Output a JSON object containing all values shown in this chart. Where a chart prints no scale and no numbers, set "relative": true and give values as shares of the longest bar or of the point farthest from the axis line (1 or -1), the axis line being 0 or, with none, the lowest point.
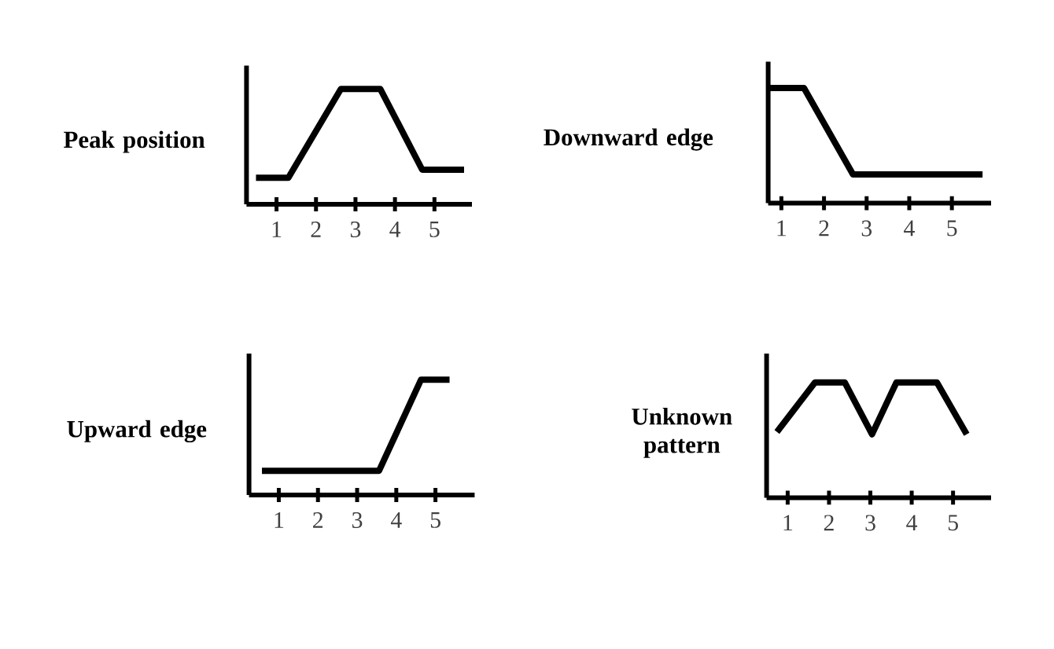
{
  "chart_data": [
    {
      "type": "line",
      "relative": true,
      "ylabel": "Peak position",
      "color": "#000000",
      "xlim": [
        0.24,
        5.95
      ],
      "xticks": [
        1,
        2,
        3,
        4,
        5
      ],
      "x": [
        0.48,
        1.3,
        2.63,
        3.63,
        4.69,
        5.75
      ],
      "values": [
        0.23,
        0.23,
        1,
        1,
        0.3,
        0.3
      ]
    },
    {
      "type": "line",
      "relative": true,
      "ylabel": "Downward edge",
      "color": "#000000",
      "xlim": [
        0.69,
        5.92
      ],
      "xticks": [
        1,
        2,
        3,
        4,
        5
      ],
      "x": [
        0.69,
        1.53,
        2.68,
        5.72
      ],
      "values": [
        1,
        1,
        0.25,
        0.25
      ]
    },
    {
      "type": "line",
      "relative": true,
      "ylabel": "Upward edge",
      "color": "#000000",
      "xlim": [
        0.24,
        6.0
      ],
      "xticks": [
        1,
        2,
        3,
        4,
        5
      ],
      "x": [
        0.57,
        3.56,
        4.63,
        5.36
      ],
      "values": [
        0.21,
        0.21,
        1,
        1
      ]
    },
    {
      "type": "line",
      "relative": true,
      "ylabel": "Unknown pattern",
      "color": "#000000",
      "xlim": [
        0.49,
        5.92
      ],
      "xticks": [
        1,
        2,
        3,
        4,
        5
      ],
      "x": [
        0.74,
        1.66,
        2.38,
        3.04,
        3.63,
        4.61,
        5.33
      ],
      "values": [
        0.57,
        1,
        1,
        0.55,
        1,
        1,
        0.55
      ]
    }
  ]
}
